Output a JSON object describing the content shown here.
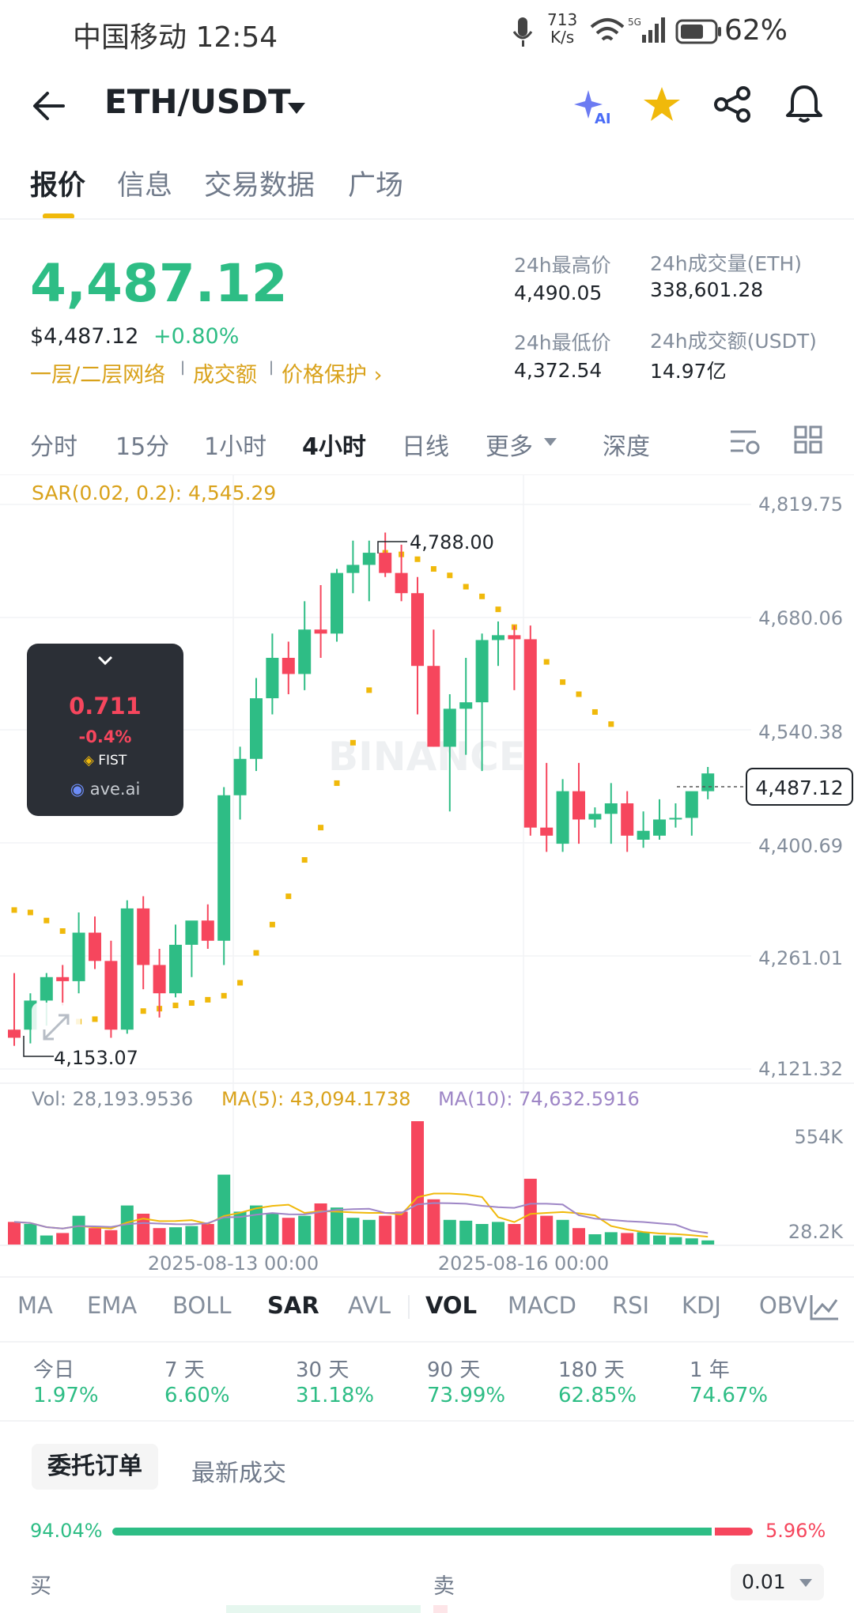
{
  "status_bar": {
    "carrier_time": "中国移动 12:54",
    "net_speed_value": "713",
    "net_speed_unit": "K/s",
    "battery": "62%"
  },
  "header": {
    "pair": "ETH/USDT"
  },
  "tabs": [
    "报价",
    "信息",
    "交易数据",
    "广场"
  ],
  "price": {
    "last": "4,487.12",
    "usd": "$4,487.12",
    "change": "+0.80%",
    "links": [
      "一层/二层网络",
      "成交额",
      "价格保护 ›"
    ]
  },
  "stats": {
    "high_label": "24h最高价",
    "high_value": "4,490.05",
    "low_label": "24h最低价",
    "low_value": "4,372.54",
    "vol_eth_label": "24h成交量(ETH)",
    "vol_eth_value": "338,601.28",
    "vol_usdt_label": "24h成交额(USDT)",
    "vol_usdt_value": "14.97亿"
  },
  "periods": [
    "分时",
    "15分",
    "1小时",
    "4小时",
    "日线",
    "更多",
    "深度"
  ],
  "chart_data": {
    "type": "candlestick",
    "sar_label": "SAR(0.02, 0.2): 4,545.29",
    "y_axis_ticks": [
      "4,819.75",
      "4,680.06",
      "4,540.38",
      "4,400.69",
      "4,261.01",
      "4,121.32"
    ],
    "current_price_label": "4,487.12",
    "high_marker": "4,788.00",
    "low_marker": "4,153.07",
    "vol_label": "Vol: 28,193.9536",
    "ma5_label": "MA(5): 43,094.1738",
    "ma10_label": "MA(10): 74,632.5916",
    "vol_axis_ticks": [
      "554K",
      "28.2K"
    ],
    "x_axis_ticks": [
      "2025-08-13 00:00",
      "2025-08-16 00:00"
    ],
    "watermark": "BINANCE",
    "candles": [
      [
        4170,
        4240,
        4150,
        4160
      ],
      [
        4170,
        4215,
        4153,
        4206
      ],
      [
        4206,
        4240,
        4175,
        4235
      ],
      [
        4235,
        4250,
        4200,
        4230
      ],
      [
        4230,
        4315,
        4215,
        4290
      ],
      [
        4290,
        4310,
        4245,
        4255
      ],
      [
        4255,
        4280,
        4160,
        4170
      ],
      [
        4170,
        4330,
        4165,
        4320
      ],
      [
        4320,
        4335,
        4220,
        4250
      ],
      [
        4250,
        4270,
        4185,
        4215
      ],
      [
        4215,
        4300,
        4210,
        4275
      ],
      [
        4275,
        4300,
        4235,
        4305
      ],
      [
        4305,
        4325,
        4270,
        4280
      ],
      [
        4280,
        4470,
        4250,
        4460
      ],
      [
        4460,
        4520,
        4430,
        4505
      ],
      [
        4505,
        4605,
        4490,
        4580
      ],
      [
        4580,
        4660,
        4560,
        4630
      ],
      [
        4630,
        4650,
        4585,
        4610
      ],
      [
        4610,
        4700,
        4590,
        4665
      ],
      [
        4665,
        4720,
        4630,
        4660
      ],
      [
        4660,
        4740,
        4650,
        4735
      ],
      [
        4735,
        4775,
        4710,
        4745
      ],
      [
        4745,
        4775,
        4700,
        4760
      ],
      [
        4760,
        4785,
        4730,
        4735
      ],
      [
        4735,
        4770,
        4700,
        4710
      ],
      [
        4710,
        4730,
        4560,
        4620
      ],
      [
        4620,
        4665,
        4520,
        4520
      ],
      [
        4520,
        4585,
        4440,
        4567
      ],
      [
        4567,
        4630,
        4510,
        4575
      ],
      [
        4575,
        4660,
        4490,
        4652
      ],
      [
        4652,
        4675,
        4620,
        4658
      ],
      [
        4658,
        4670,
        4590,
        4653
      ],
      [
        4653,
        4670,
        4410,
        4420
      ],
      [
        4420,
        4500,
        4390,
        4410
      ],
      [
        4400,
        4480,
        4390,
        4465
      ],
      [
        4465,
        4500,
        4400,
        4430
      ],
      [
        4430,
        4445,
        4420,
        4437
      ],
      [
        4437,
        4475,
        4400,
        4450
      ],
      [
        4450,
        4465,
        4390,
        4410
      ],
      [
        4405,
        4440,
        4395,
        4416
      ],
      [
        4410,
        4455,
        4405,
        4430
      ],
      [
        4430,
        4450,
        4420,
        4432
      ],
      [
        4432,
        4460,
        4410,
        4465
      ],
      [
        4465,
        4495,
        4455,
        4487
      ]
    ],
    "volumes": [
      55,
      50,
      22,
      28,
      70,
      40,
      35,
      95,
      75,
      40,
      42,
      45,
      50,
      170,
      80,
      95,
      75,
      65,
      70,
      100,
      90,
      65,
      60,
      70,
      80,
      300,
      110,
      60,
      58,
      50,
      55,
      50,
      160,
      70,
      60,
      40,
      25,
      30,
      28,
      30,
      22,
      18,
      15,
      10
    ],
    "sar": [
      [
        0,
        4318
      ],
      [
        1,
        4315
      ],
      [
        2,
        4305
      ],
      [
        3,
        4292
      ],
      [
        4,
        4180
      ],
      [
        5,
        4183
      ],
      [
        6,
        4188
      ],
      [
        7,
        4190
      ],
      [
        8,
        4193
      ],
      [
        9,
        4196
      ],
      [
        10,
        4200
      ],
      [
        11,
        4203
      ],
      [
        12,
        4207
      ],
      [
        13,
        4212
      ],
      [
        14,
        4228
      ],
      [
        15,
        4265
      ],
      [
        16,
        4300
      ],
      [
        17,
        4335
      ],
      [
        18,
        4380
      ],
      [
        19,
        4420
      ],
      [
        20,
        4475
      ],
      [
        21,
        4525
      ],
      [
        22,
        4590
      ],
      [
        23,
        4760
      ],
      [
        24,
        4758
      ],
      [
        25,
        4752
      ],
      [
        26,
        4740
      ],
      [
        27,
        4732
      ],
      [
        28,
        4718
      ],
      [
        29,
        4706
      ],
      [
        30,
        4690
      ],
      [
        31,
        4668
      ],
      [
        32,
        4645
      ],
      [
        33,
        4625
      ],
      [
        34,
        4600
      ],
      [
        35,
        4585
      ],
      [
        36,
        4563
      ],
      [
        37,
        4548
      ]
    ]
  },
  "popup": {
    "value": "0.711",
    "change": "-0.4%",
    "token": "FIST",
    "source": "ave.ai"
  },
  "indicators": [
    "MA",
    "EMA",
    "BOLL",
    "SAR",
    "AVL",
    "VOL",
    "MACD",
    "RSI",
    "KDJ",
    "OBV"
  ],
  "returns": [
    {
      "label": "今日",
      "value": "1.97%"
    },
    {
      "label": "7 天",
      "value": "6.60%"
    },
    {
      "label": "30 天",
      "value": "31.18%"
    },
    {
      "label": "90 天",
      "value": "73.99%"
    },
    {
      "label": "180 天",
      "value": "62.85%"
    },
    {
      "label": "1 年",
      "value": "74.67%"
    }
  ],
  "orderbook": {
    "tab_orders": "委托订单",
    "tab_trades": "最新成交",
    "buy_pct": "94.04%",
    "sell_pct": "5.96%",
    "buy_ratio": 0.9404,
    "buy_label": "买",
    "sell_label": "卖",
    "precision": "0.01"
  }
}
